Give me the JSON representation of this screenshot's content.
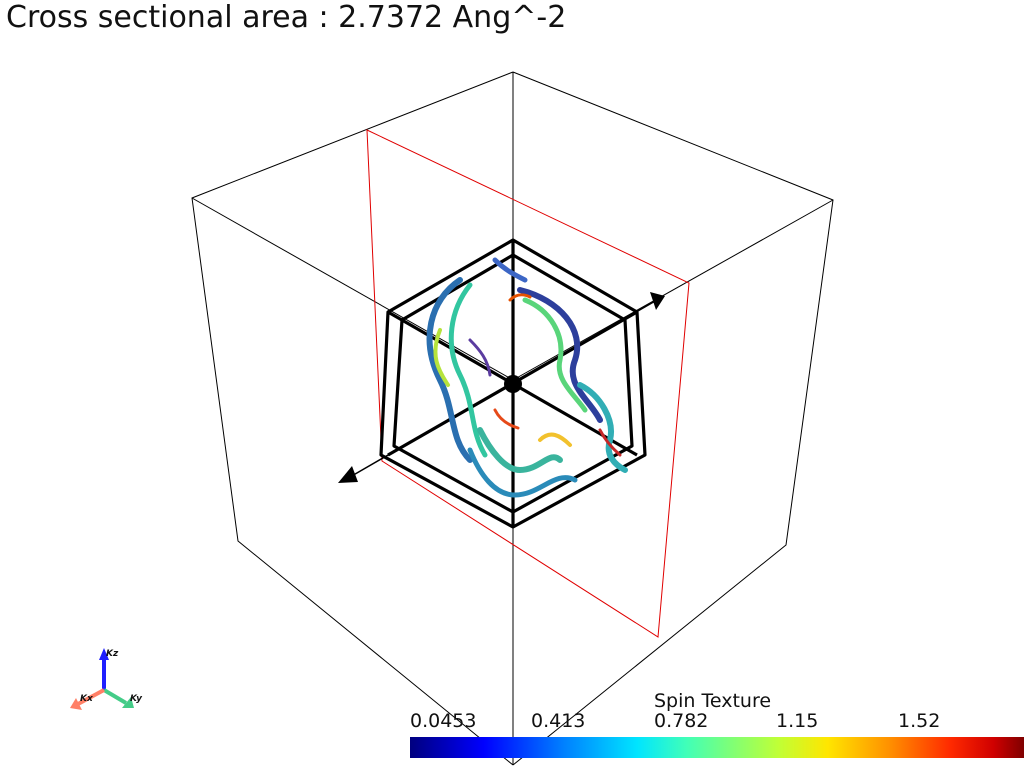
{
  "title": "Cross sectional area : 2.7372 Ang^-2",
  "colorbar": {
    "title": "Spin Texture",
    "ticks": [
      "0.0453",
      "0.413",
      "0.782",
      "1.15",
      "1.52"
    ]
  },
  "axes": {
    "x": "Kx",
    "y": "Ky",
    "z": "Kz"
  },
  "colors": {
    "box": "#000000",
    "plane": "#e00000",
    "axis_x": "#ff7f66",
    "axis_y": "#44cc88",
    "axis_z": "#1f1fff"
  }
}
